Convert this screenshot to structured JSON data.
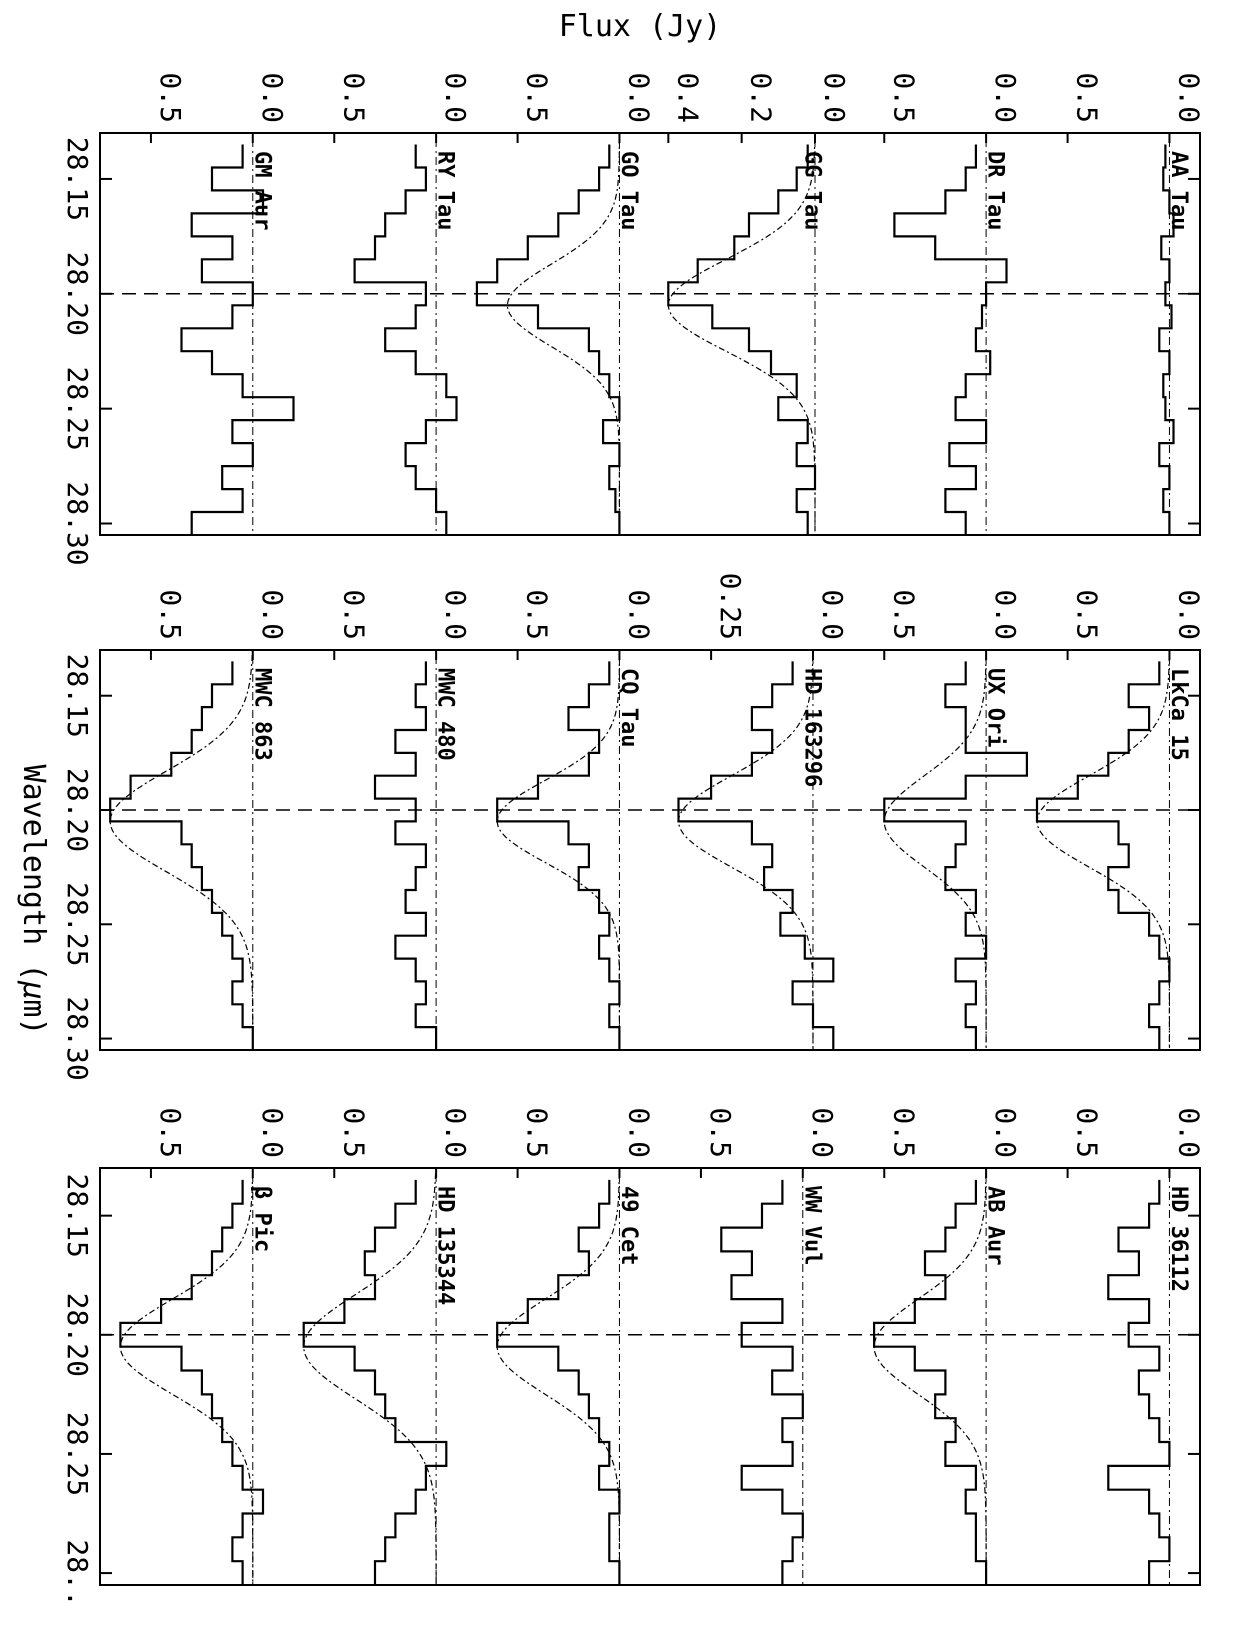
{
  "chart_data": {
    "type": "line",
    "orientation": "rotated 90 degrees clockwise (wavelength runs top to bottom, flux increases to the left)",
    "axis_title_flux": "Flux (Jy)",
    "axis_title_wavelength_main": "Wavelength (",
    "axis_title_wavelength_mu": "μ",
    "axis_title_wavelength_unit": "m)",
    "xlim": [
      28.13,
      28.305
    ],
    "xticks": [
      "28.15",
      "28.20",
      "28.25",
      "28.30"
    ],
    "last_column_tick_labels": [
      "28.15",
      "28.20",
      "28.25",
      "28.."
    ],
    "reference_line_um": 28.2,
    "grid": false,
    "columns": [
      {
        "panels": [
          {
            "name": "AA Tau",
            "ylim": [
              -0.15,
              0.75
            ],
            "yticks": [
              "0.0",
              "0.5"
            ],
            "amplitude": 0.0,
            "center": 28.205,
            "sigma": 0.02,
            "wave": [
              28.14,
              28.15,
              28.16,
              28.17,
              28.18,
              28.19,
              28.2,
              28.21,
              28.22,
              28.23,
              28.24,
              28.25,
              28.26,
              28.27,
              28.28,
              28.29,
              28.3
            ],
            "flux": [
              0.02,
              0.03,
              0.0,
              -0.02,
              0.04,
              0.0,
              0.02,
              -0.01,
              0.05,
              0.0,
              0.03,
              0.02,
              -0.02,
              0.05,
              0.0,
              0.03,
              0.0
            ]
          },
          {
            "name": "DR Tau",
            "ylim": [
              -0.15,
              0.75
            ],
            "yticks": [
              "0.0",
              "0.5"
            ],
            "amplitude": 0.0,
            "center": 28.205,
            "sigma": 0.02,
            "wave": [
              28.14,
              28.15,
              28.16,
              28.17,
              28.18,
              28.19,
              28.2,
              28.21,
              28.22,
              28.23,
              28.24,
              28.25,
              28.26,
              28.27,
              28.28,
              28.29,
              28.3
            ],
            "flux": [
              0.05,
              0.1,
              0.2,
              0.45,
              0.25,
              -0.1,
              0.0,
              0.02,
              0.05,
              -0.02,
              0.1,
              0.15,
              0.0,
              0.18,
              0.05,
              0.2,
              0.1
            ]
          },
          {
            "name": "GG Tau",
            "ylim": [
              -0.05,
              0.45
            ],
            "yticks": [
              "0.0",
              "0.2",
              "0.4"
            ],
            "amplitude": 0.4,
            "center": 28.205,
            "sigma": 0.02,
            "wave": [
              28.14,
              28.15,
              28.16,
              28.17,
              28.18,
              28.19,
              28.2,
              28.21,
              28.22,
              28.23,
              28.24,
              28.25,
              28.26,
              28.27,
              28.28,
              28.29,
              28.3
            ],
            "flux": [
              0.02,
              0.05,
              0.1,
              0.18,
              0.22,
              0.32,
              0.4,
              0.28,
              0.18,
              0.12,
              0.05,
              0.1,
              0.02,
              0.05,
              0.0,
              0.05,
              0.02
            ]
          },
          {
            "name": "GO Tau",
            "ylim": [
              -0.15,
              0.75
            ],
            "yticks": [
              "0.0",
              "0.5"
            ],
            "amplitude": 0.55,
            "center": 28.205,
            "sigma": 0.018,
            "wave": [
              28.14,
              28.15,
              28.16,
              28.17,
              28.18,
              28.19,
              28.2,
              28.21,
              28.22,
              28.23,
              28.24,
              28.25,
              28.26,
              28.27,
              28.28,
              28.29,
              28.3
            ],
            "flux": [
              0.05,
              0.1,
              0.2,
              0.3,
              0.45,
              0.6,
              0.7,
              0.4,
              0.15,
              0.1,
              0.05,
              0.0,
              0.08,
              0.0,
              0.05,
              0.02,
              0.0
            ]
          },
          {
            "name": "RY Tau",
            "ylim": [
              -0.15,
              0.75
            ],
            "yticks": [
              "0.0",
              "0.5"
            ],
            "amplitude": 0.0,
            "center": 28.205,
            "sigma": 0.02,
            "wave": [
              28.14,
              28.15,
              28.16,
              28.17,
              28.18,
              28.19,
              28.2,
              28.21,
              28.22,
              28.23,
              28.24,
              28.25,
              28.26,
              28.27,
              28.28,
              28.29,
              28.3
            ],
            "flux": [
              0.1,
              0.05,
              0.15,
              0.25,
              0.3,
              0.4,
              0.05,
              0.1,
              0.25,
              0.1,
              -0.05,
              -0.1,
              0.05,
              0.15,
              0.1,
              0.0,
              -0.05
            ]
          },
          {
            "name": "GM Aur",
            "ylim": [
              -0.15,
              0.75
            ],
            "yticks": [
              "0.0",
              "0.5"
            ],
            "amplitude": 0.0,
            "center": 28.205,
            "sigma": 0.02,
            "wave": [
              28.14,
              28.15,
              28.16,
              28.17,
              28.18,
              28.19,
              28.2,
              28.21,
              28.22,
              28.23,
              28.24,
              28.25,
              28.26,
              28.27,
              28.28,
              28.29,
              28.3
            ],
            "flux": [
              0.05,
              0.2,
              -0.05,
              0.3,
              0.1,
              0.25,
              0.0,
              0.1,
              0.35,
              0.2,
              0.05,
              -0.2,
              0.1,
              0.0,
              0.15,
              0.05,
              0.3
            ]
          }
        ]
      },
      {
        "panels": [
          {
            "name": "LkCa 15",
            "ylim": [
              -0.15,
              0.75
            ],
            "yticks": [
              "0.0",
              "0.5"
            ],
            "amplitude": 0.65,
            "center": 28.205,
            "sigma": 0.02,
            "wave": [
              28.14,
              28.15,
              28.16,
              28.17,
              28.18,
              28.19,
              28.2,
              28.21,
              28.22,
              28.23,
              28.24,
              28.25,
              28.26,
              28.27,
              28.28,
              28.29,
              28.3
            ],
            "flux": [
              0.05,
              0.2,
              0.1,
              0.2,
              0.3,
              0.45,
              0.65,
              0.25,
              0.2,
              0.3,
              0.25,
              0.1,
              0.05,
              0.0,
              0.05,
              0.1,
              0.05
            ]
          },
          {
            "name": "UX Ori",
            "ylim": [
              -0.15,
              0.75
            ],
            "yticks": [
              "0.0",
              "0.5"
            ],
            "amplitude": 0.5,
            "center": 28.205,
            "sigma": 0.02,
            "wave": [
              28.14,
              28.15,
              28.16,
              28.17,
              28.18,
              28.19,
              28.2,
              28.21,
              28.22,
              28.23,
              28.24,
              28.25,
              28.26,
              28.27,
              28.28,
              28.29,
              28.3
            ],
            "flux": [
              0.1,
              0.2,
              0.1,
              0.1,
              -0.2,
              0.1,
              0.5,
              0.1,
              0.15,
              0.2,
              0.05,
              0.1,
              0.0,
              0.15,
              0.05,
              0.1,
              0.05
            ]
          },
          {
            "name": "HD 163296",
            "ylim": [
              -0.05,
              0.4
            ],
            "yticks": [
              "0.0",
              "0.25"
            ],
            "amplitude": 0.33,
            "center": 28.205,
            "sigma": 0.02,
            "wave": [
              28.14,
              28.15,
              28.16,
              28.17,
              28.18,
              28.19,
              28.2,
              28.21,
              28.22,
              28.23,
              28.24,
              28.25,
              28.26,
              28.27,
              28.28,
              28.29,
              28.3
            ],
            "flux": [
              0.05,
              0.1,
              0.15,
              0.1,
              0.15,
              0.25,
              0.33,
              0.15,
              0.1,
              0.12,
              0.05,
              0.08,
              0.02,
              -0.05,
              0.05,
              0.0,
              -0.05
            ]
          },
          {
            "name": "CQ Tau",
            "ylim": [
              -0.15,
              0.75
            ],
            "yticks": [
              "0.0",
              "0.5"
            ],
            "amplitude": 0.6,
            "center": 28.205,
            "sigma": 0.018,
            "wave": [
              28.14,
              28.15,
              28.16,
              28.17,
              28.18,
              28.19,
              28.2,
              28.21,
              28.22,
              28.23,
              28.24,
              28.25,
              28.26,
              28.27,
              28.28,
              28.29,
              28.3
            ],
            "flux": [
              0.05,
              0.15,
              0.25,
              0.1,
              0.15,
              0.4,
              0.6,
              0.25,
              0.15,
              0.2,
              0.1,
              0.05,
              0.1,
              0.05,
              0.0,
              0.05,
              0.0
            ]
          },
          {
            "name": "MWC 480",
            "ylim": [
              -0.15,
              0.75
            ],
            "yticks": [
              "0.0",
              "0.5"
            ],
            "amplitude": 0.0,
            "center": 28.205,
            "sigma": 0.02,
            "wave": [
              28.14,
              28.15,
              28.16,
              28.17,
              28.18,
              28.19,
              28.2,
              28.21,
              28.22,
              28.23,
              28.24,
              28.25,
              28.26,
              28.27,
              28.28,
              28.29,
              28.3
            ],
            "flux": [
              0.05,
              0.1,
              0.05,
              0.2,
              0.1,
              0.3,
              0.1,
              0.2,
              0.05,
              0.1,
              0.15,
              0.05,
              0.2,
              0.1,
              0.05,
              0.1,
              0.0
            ]
          },
          {
            "name": "MWC 863",
            "ylim": [
              -0.15,
              0.75
            ],
            "yticks": [
              "0.0",
              "0.5"
            ],
            "amplitude": 0.7,
            "center": 28.205,
            "sigma": 0.022,
            "wave": [
              28.14,
              28.15,
              28.16,
              28.17,
              28.18,
              28.19,
              28.2,
              28.21,
              28.22,
              28.23,
              28.24,
              28.25,
              28.26,
              28.27,
              28.28,
              28.29,
              28.3
            ],
            "flux": [
              0.1,
              0.2,
              0.25,
              0.3,
              0.4,
              0.6,
              0.7,
              0.35,
              0.3,
              0.25,
              0.2,
              0.15,
              0.1,
              0.05,
              0.1,
              0.05,
              0.0
            ]
          }
        ]
      },
      {
        "panels": [
          {
            "name": "HD 36112",
            "ylim": [
              -0.15,
              0.75
            ],
            "yticks": [
              "0.0",
              "0.5"
            ],
            "amplitude": 0.0,
            "center": 28.205,
            "sigma": 0.02,
            "wave": [
              28.14,
              28.15,
              28.16,
              28.17,
              28.18,
              28.19,
              28.2,
              28.21,
              28.22,
              28.23,
              28.24,
              28.25,
              28.26,
              28.27,
              28.28,
              28.29,
              28.3
            ],
            "flux": [
              0.05,
              0.1,
              0.25,
              0.15,
              0.3,
              0.1,
              0.2,
              0.05,
              0.15,
              0.1,
              0.05,
              0.0,
              0.3,
              0.1,
              0.05,
              0.0,
              0.1
            ]
          },
          {
            "name": "AB Aur",
            "ylim": [
              -0.15,
              0.75
            ],
            "yticks": [
              "0.0",
              "0.5"
            ],
            "amplitude": 0.55,
            "center": 28.205,
            "sigma": 0.02,
            "wave": [
              28.14,
              28.15,
              28.16,
              28.17,
              28.18,
              28.19,
              28.2,
              28.21,
              28.22,
              28.23,
              28.24,
              28.25,
              28.26,
              28.27,
              28.28,
              28.29,
              28.3
            ],
            "flux": [
              0.05,
              0.15,
              0.2,
              0.3,
              0.2,
              0.35,
              0.55,
              0.35,
              0.2,
              0.25,
              0.15,
              0.2,
              0.05,
              0.1,
              0.05,
              0.05,
              0.0
            ]
          },
          {
            "name": "WW Vul",
            "ylim": [
              -0.15,
              0.75
            ],
            "yticks": [
              "0.0",
              "0.5"
            ],
            "amplitude": 0.0,
            "center": 28.205,
            "sigma": 0.02,
            "wave": [
              28.14,
              28.15,
              28.16,
              28.17,
              28.18,
              28.19,
              28.2,
              28.21,
              28.22,
              28.23,
              28.24,
              28.25,
              28.26,
              28.27,
              28.28,
              28.29,
              28.3
            ],
            "flux": [
              0.1,
              0.2,
              0.4,
              0.25,
              0.35,
              0.1,
              0.3,
              0.05,
              0.15,
              0.0,
              0.1,
              0.05,
              0.3,
              0.1,
              0.0,
              0.05,
              0.1
            ]
          },
          {
            "name": "49 Cet",
            "ylim": [
              -0.15,
              0.75
            ],
            "yticks": [
              "0.0",
              "0.5"
            ],
            "amplitude": 0.6,
            "center": 28.205,
            "sigma": 0.02,
            "wave": [
              28.14,
              28.15,
              28.16,
              28.17,
              28.18,
              28.19,
              28.2,
              28.21,
              28.22,
              28.23,
              28.24,
              28.25,
              28.26,
              28.27,
              28.28,
              28.29,
              28.3
            ],
            "flux": [
              0.05,
              0.1,
              0.2,
              0.15,
              0.3,
              0.45,
              0.6,
              0.3,
              0.2,
              0.15,
              0.1,
              0.05,
              0.1,
              0.0,
              0.05,
              0.05,
              0.0
            ]
          },
          {
            "name": "HD 135344",
            "ylim": [
              -0.15,
              0.75
            ],
            "yticks": [
              "0.0",
              "0.5"
            ],
            "amplitude": 0.65,
            "center": 28.205,
            "sigma": 0.022,
            "wave": [
              28.14,
              28.15,
              28.16,
              28.17,
              28.18,
              28.19,
              28.2,
              28.21,
              28.22,
              28.23,
              28.24,
              28.25,
              28.26,
              28.27,
              28.28,
              28.29,
              28.3
            ],
            "flux": [
              0.1,
              0.2,
              0.3,
              0.35,
              0.3,
              0.45,
              0.65,
              0.4,
              0.3,
              0.25,
              0.2,
              -0.05,
              0.05,
              0.1,
              0.2,
              0.25,
              0.3
            ]
          },
          {
            "name": "β Pic",
            "ylim": [
              -0.15,
              0.75
            ],
            "yticks": [
              "0.0",
              "0.5"
            ],
            "amplitude": 0.65,
            "center": 28.205,
            "sigma": 0.02,
            "wave": [
              28.14,
              28.15,
              28.16,
              28.17,
              28.18,
              28.19,
              28.2,
              28.21,
              28.22,
              28.23,
              28.24,
              28.25,
              28.26,
              28.27,
              28.28,
              28.29,
              28.3
            ],
            "flux": [
              0.05,
              0.1,
              0.15,
              0.2,
              0.3,
              0.45,
              0.65,
              0.35,
              0.25,
              0.2,
              0.15,
              0.1,
              0.05,
              -0.05,
              0.05,
              0.1,
              0.05
            ]
          }
        ]
      }
    ]
  }
}
